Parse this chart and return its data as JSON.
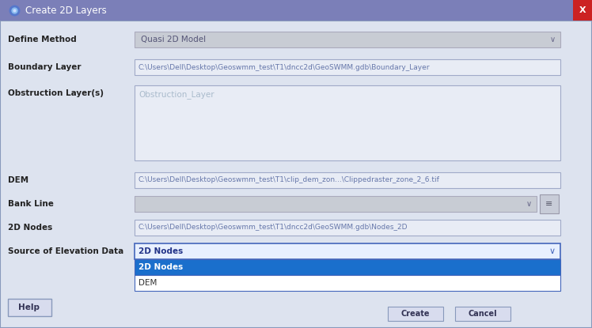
{
  "title": "Create 2D Layers",
  "title_bar_color": "#7b7fb8",
  "title_text_color": "#ffffff",
  "bg_color": "#dde3ef",
  "close_btn_color": "#cc2222",
  "field_bg_light": "#e8ecf5",
  "field_bg_gray": "#c8ccd4",
  "field_border_blue": "#a0aac8",
  "field_border_dark": "#8899aa",
  "field_text_color": "#6677aa",
  "label_text_color": "#222222",
  "define_method_text": "Quasi 2D Model",
  "boundary_text": "C:\\Users\\Dell\\Desktop\\Geoswmm_test\\T1\\dncc2d\\GeoSWMM.gdb\\Boundary_Layer",
  "obstruction_text": "Obstruction_Layer",
  "dem_text": "C:\\Users\\Dell\\Desktop\\Geoswmm_test\\T1\\clip_dem_zon...\\Clippedraster_zone_2_6.tif",
  "nodes_text": "C:\\Users\\Dell\\Desktop\\Geoswmm_test\\T1\\dncc2d\\GeoSWMM.gdb\\Nodes_2D",
  "soe_text": "2D Nodes",
  "drop_item1": "2D Nodes",
  "drop_item2": "DEM",
  "help_text": "Help",
  "create_text": "Create",
  "cancel_text": "Cancel",
  "selected_bg": "#1a6fcc",
  "selected_text": "#ffffff",
  "unselected_bg": "#ffffff",
  "unselected_text": "#333333",
  "soe_field_bg": "#e8f0ff",
  "soe_field_border": "#4466bb"
}
